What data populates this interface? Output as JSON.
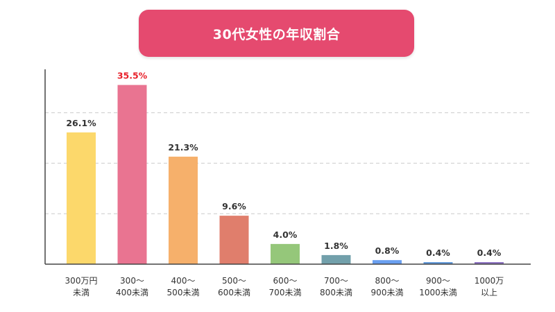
{
  "chart_data": {
    "type": "bar",
    "title": "30代女性の年収割合",
    "categories": [
      [
        "300万円",
        "未満"
      ],
      [
        "300～",
        "400未満"
      ],
      [
        "400～",
        "500未満"
      ],
      [
        "500～",
        "600未満"
      ],
      [
        "600～",
        "700未満"
      ],
      [
        "700～",
        "800未満"
      ],
      [
        "800～",
        "900未満"
      ],
      [
        "900～",
        "1000未満"
      ],
      [
        "1000万",
        "以上"
      ]
    ],
    "values": [
      26.1,
      35.5,
      21.3,
      9.6,
      4.0,
      1.8,
      0.8,
      0.4,
      0.4
    ],
    "value_labels": [
      "26.1%",
      "35.5%",
      "21.3%",
      "9.6%",
      "4.0%",
      "1.8%",
      "0.8%",
      "0.4%",
      "0.4%"
    ],
    "bar_colors": [
      "#fcd86b",
      "#e97491",
      "#f6b06b",
      "#e07e6c",
      "#95c77a",
      "#72a0ab",
      "#6a9ff0",
      "#5f97d9",
      "#8a6fc0"
    ],
    "label_colors": [
      "#333333",
      "#e8202a",
      "#333333",
      "#333333",
      "#333333",
      "#333333",
      "#333333",
      "#333333",
      "#333333"
    ],
    "xlabel": "",
    "ylabel": "",
    "ylim": [
      0,
      40
    ],
    "gridlines": [
      10,
      20,
      30
    ],
    "grid": "dashed horizontal"
  }
}
